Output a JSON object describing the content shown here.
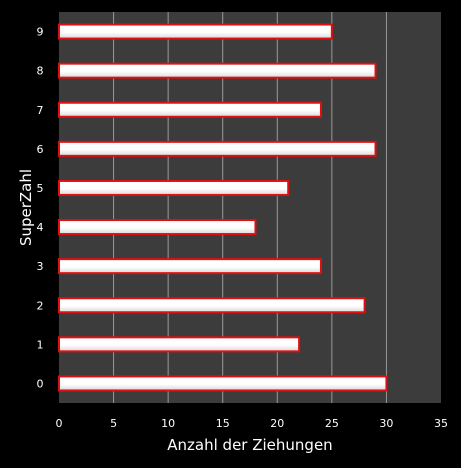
{
  "chart_data": {
    "type": "bar",
    "orientation": "horizontal",
    "xlabel": "Anzahl der Ziehungen",
    "ylabel": "SuperZahl",
    "xlim": [
      0,
      35
    ],
    "xticks": [
      "0",
      "5",
      "10",
      "15",
      "20",
      "25",
      "30",
      "35"
    ],
    "categories": [
      "0",
      "1",
      "2",
      "3",
      "4",
      "5",
      "6",
      "7",
      "8",
      "9"
    ],
    "values": [
      30,
      22,
      28,
      24,
      18,
      21,
      29,
      24,
      29,
      25
    ],
    "grid": true,
    "colors": {
      "background": "#000000",
      "plot_area": "#3c3c3c",
      "gridline": "#9a9a9a",
      "bar_fill": "#ffffff",
      "bar_edge": "#e01010",
      "text": "#ffffff"
    }
  }
}
